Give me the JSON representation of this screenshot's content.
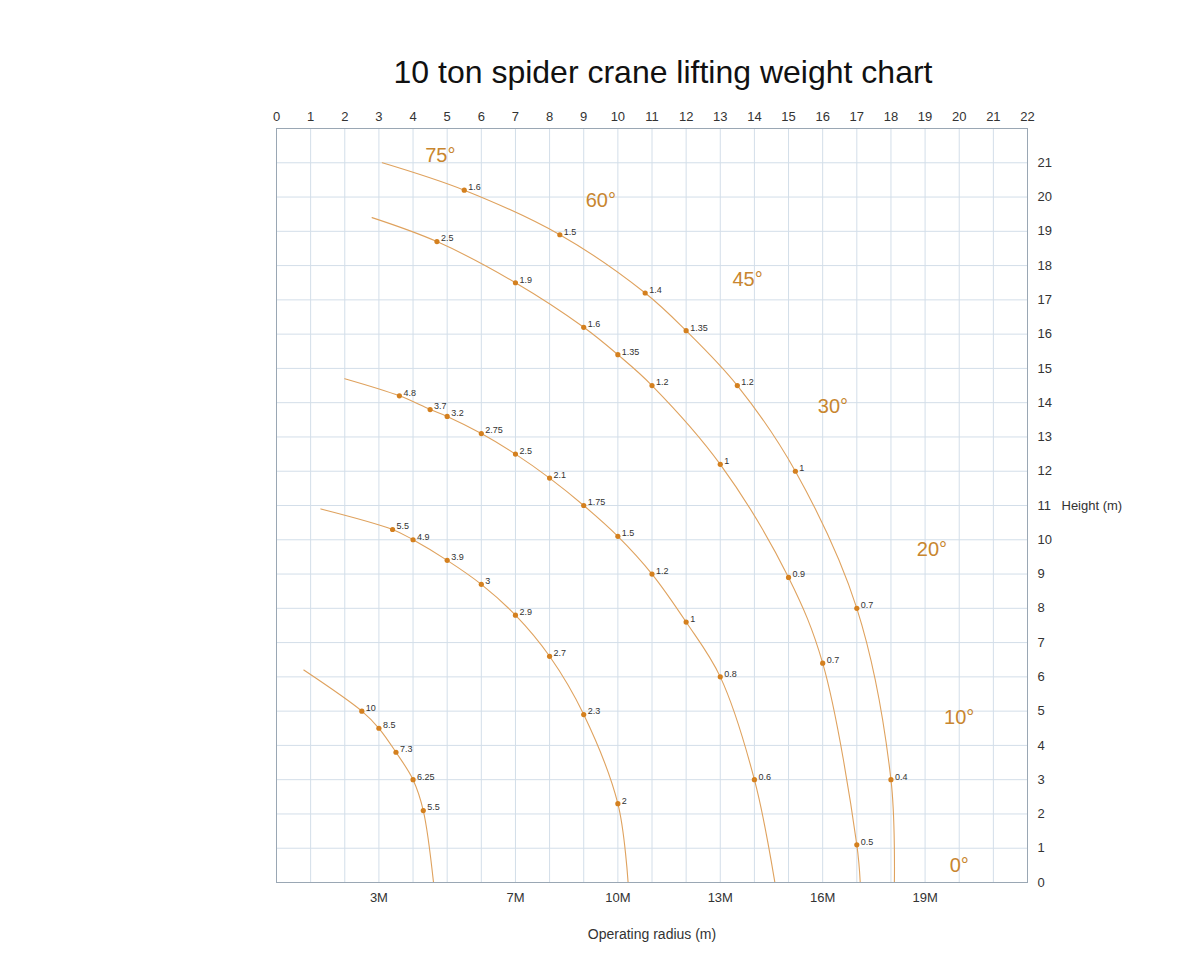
{
  "chart_data": {
    "type": "line",
    "title": "10 ton spider crane lifting weight chart",
    "xlabel": "Operating radius (m)",
    "ylabel": "Height (m)",
    "xlim": [
      0,
      22
    ],
    "ylim": [
      0,
      22
    ],
    "xticks": [
      0,
      1,
      2,
      3,
      4,
      5,
      6,
      7,
      8,
      9,
      10,
      11,
      12,
      13,
      14,
      15,
      16,
      17,
      18,
      19,
      20,
      21,
      22
    ],
    "x_bottom_ticks": [
      {
        "value": 3,
        "label": "3M"
      },
      {
        "value": 7,
        "label": "7M"
      },
      {
        "value": 10,
        "label": "10M"
      },
      {
        "value": 13,
        "label": "13M"
      },
      {
        "value": 16,
        "label": "16M"
      },
      {
        "value": 19,
        "label": "19M"
      }
    ],
    "yticks": [
      0,
      1,
      2,
      3,
      4,
      5,
      6,
      7,
      8,
      9,
      10,
      11,
      12,
      13,
      14,
      15,
      16,
      17,
      18,
      19,
      20,
      21
    ],
    "grid": true,
    "marker": "circle",
    "data_labels": true,
    "series": [
      {
        "color": "#dfa25e",
        "x": [
          0.8,
          2.5,
          3.0,
          3.5,
          4.0,
          4.3,
          4.6
        ],
        "values": [
          6.2,
          5.0,
          4.5,
          3.8,
          3.0,
          2.1,
          0
        ],
        "capacities": [
          null,
          10,
          8.5,
          7.3,
          6.25,
          5.5,
          null
        ]
      },
      {
        "color": "#dfa25e",
        "x": [
          1.3,
          3.4,
          4.0,
          5.0,
          6.0,
          7.0,
          8.0,
          9.0,
          10.0,
          10.3
        ],
        "values": [
          10.9,
          10.3,
          10.0,
          9.4,
          8.7,
          7.8,
          6.6,
          4.9,
          2.3,
          0
        ],
        "capacities": [
          null,
          5.5,
          4.9,
          3.9,
          3,
          2.9,
          2.7,
          2.3,
          2,
          null
        ]
      },
      {
        "color": "#dfa25e",
        "x": [
          2.0,
          3.6,
          4.5,
          5.0,
          6.0,
          7.0,
          8.0,
          9.0,
          10.0,
          11.0,
          12.0,
          13.0,
          14.0,
          14.6
        ],
        "values": [
          14.7,
          14.2,
          13.8,
          13.6,
          13.1,
          12.5,
          11.8,
          11.0,
          10.1,
          9.0,
          7.6,
          6.0,
          3.0,
          0
        ],
        "capacities": [
          null,
          4.8,
          3.7,
          3.2,
          2.75,
          2.5,
          2.1,
          1.75,
          1.5,
          1.2,
          1,
          0.8,
          0.6,
          null
        ]
      },
      {
        "color": "#dfa25e",
        "x": [
          2.8,
          4.7,
          7.0,
          9.0,
          10.0,
          11.0,
          13.0,
          15.0,
          16.0,
          17.0,
          17.1
        ],
        "values": [
          19.4,
          18.7,
          17.5,
          16.2,
          15.4,
          14.5,
          12.2,
          8.9,
          6.4,
          1.1,
          0
        ],
        "capacities": [
          null,
          2.5,
          1.9,
          1.6,
          1.35,
          1.2,
          1,
          0.9,
          0.7,
          0.5,
          null
        ]
      },
      {
        "color": "#dfa25e",
        "x": [
          3.1,
          5.5,
          8.3,
          10.8,
          12.0,
          13.5,
          15.2,
          17.0,
          18.0,
          18.1
        ],
        "values": [
          21.0,
          20.2,
          18.9,
          17.2,
          16.1,
          14.5,
          12.0,
          8.0,
          3.0,
          0
        ],
        "capacities": [
          null,
          1.6,
          1.5,
          1.4,
          1.35,
          1.2,
          1,
          0.7,
          0.4,
          null
        ]
      }
    ],
    "marker_color": "#d4801f",
    "annotations": [
      {
        "text": "75°",
        "x": 4.8,
        "y": 21.2,
        "color": "#c8862f"
      },
      {
        "text": "60°",
        "x": 9.5,
        "y": 19.9,
        "color": "#c8862f"
      },
      {
        "text": "45°",
        "x": 13.8,
        "y": 17.6,
        "color": "#c8862f"
      },
      {
        "text": "30°",
        "x": 16.3,
        "y": 13.9,
        "color": "#c8862f"
      },
      {
        "text": "20°",
        "x": 19.2,
        "y": 9.7,
        "color": "#c8862f"
      },
      {
        "text": "10°",
        "x": 20.0,
        "y": 4.8,
        "color": "#c8862f"
      },
      {
        "text": "0°",
        "x": 20.0,
        "y": 0.5,
        "color": "#c8862f"
      }
    ]
  }
}
